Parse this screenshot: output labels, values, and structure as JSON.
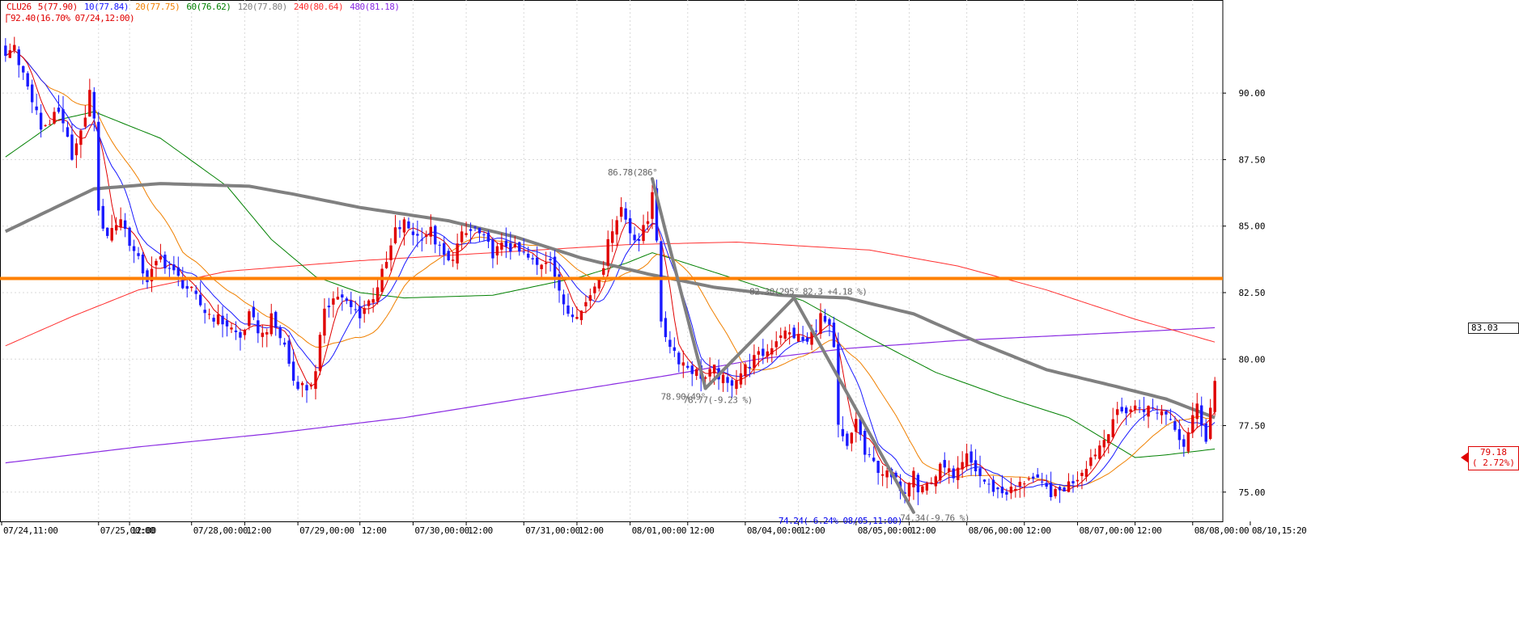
{
  "legend": {
    "symbol": "CLU26",
    "ma5": "5(77.90)",
    "ma10": "10(77.84)",
    "ma20": "20(77.75)",
    "ma60": "60(76.62)",
    "ma120": "120(77.80)",
    "ma240": "240(80.64)",
    "ma480": "480(81.18)",
    "high_label": "92.40(16.70% 07/24,12:00)"
  },
  "colors": {
    "up": "#e00000",
    "down": "#1a1aff",
    "ma5": "#e00000",
    "ma10": "#1a1aff",
    "ma20": "#f08000",
    "ma60": "#008000",
    "ma120": "#808080",
    "ma240": "#ff3030",
    "ma480": "#8a2be2",
    "hline": "#ff8000",
    "trend": "#808080"
  },
  "price_tags": {
    "hline": "83.03",
    "last_price": "79.18",
    "last_change": "( 2.72%)"
  },
  "annotations": [
    {
      "text": "86.78(286°",
      "price": 86.78,
      "idx": 146
    },
    {
      "text": "78.90(49°",
      "price": 78.9,
      "idx": 158
    },
    {
      "text": "78.77(-9.23 %)",
      "price": 78.77,
      "idx": 163
    },
    {
      "text": "82.30(295°",
      "price": 82.3,
      "idx": 178
    },
    {
      "text": "82.3 +4.18 %)",
      "price": 82.3,
      "idx": 190
    },
    {
      "text": "74.24(-6.24% 08/05,11:00)",
      "price": 74.24,
      "idx": 205
    },
    {
      "text": "74.34(-9.76 %)",
      "price": 74.34,
      "idx": 212
    }
  ],
  "chart_data": {
    "type": "candlestick",
    "title": "",
    "symbol": "CLU26",
    "ylim": [
      73.9,
      93.5
    ],
    "y_ticks": [
      "90.00",
      "87.50",
      "85.00",
      "82.50",
      "80.00",
      "77.50",
      "75.00"
    ],
    "x_labels": [
      "07/24,11:00",
      "07/25,00:00",
      "12:00",
      "07/28,00:00",
      "12:00",
      "07/29,00:00",
      "12:00",
      "07/30,00:00",
      "12:00",
      "07/31,00:00",
      "12:00",
      "08/01,00:00",
      "12:00",
      "08/04,00:00",
      "12:00",
      "08/05,00:00",
      "12:00",
      "08/06,00:00",
      "12:00",
      "08/07,00:00",
      "12:00",
      "08/08,00:00",
      "08/10,15:20"
    ],
    "x_label_idx": [
      0,
      21,
      28,
      42,
      54,
      66,
      80,
      92,
      104,
      117,
      129,
      141,
      154,
      167,
      179,
      192,
      204,
      217,
      230,
      242,
      255,
      268,
      281
    ],
    "horizontal_line": 83.03,
    "series_keypoints": [
      [
        0,
        91.4
      ],
      [
        2,
        91.8
      ],
      [
        5,
        90.2
      ],
      [
        8,
        88.7
      ],
      [
        12,
        89.2
      ],
      [
        15,
        87.7
      ],
      [
        17,
        88.4
      ],
      [
        19,
        90.0
      ],
      [
        20,
        89.2
      ],
      [
        21,
        85.4
      ],
      [
        23,
        84.7
      ],
      [
        26,
        85.3
      ],
      [
        29,
        84.0
      ],
      [
        32,
        83.0
      ],
      [
        35,
        83.8
      ],
      [
        38,
        83.2
      ],
      [
        42,
        82.5
      ],
      [
        45,
        81.8
      ],
      [
        50,
        81.3
      ],
      [
        53,
        80.8
      ],
      [
        55,
        81.6
      ],
      [
        58,
        80.9
      ],
      [
        60,
        81.5
      ],
      [
        63,
        80.5
      ],
      [
        65,
        79.2
      ],
      [
        68,
        78.9
      ],
      [
        70,
        79.4
      ],
      [
        72,
        82.0
      ],
      [
        75,
        82.4
      ],
      [
        78,
        81.9
      ],
      [
        80,
        81.7
      ],
      [
        83,
        82.4
      ],
      [
        86,
        83.6
      ],
      [
        88,
        84.8
      ],
      [
        90,
        85.1
      ],
      [
        93,
        84.6
      ],
      [
        96,
        84.8
      ],
      [
        98,
        84.1
      ],
      [
        100,
        83.6
      ],
      [
        103,
        84.6
      ],
      [
        106,
        84.9
      ],
      [
        110,
        84.0
      ],
      [
        113,
        84.3
      ],
      [
        117,
        83.9
      ],
      [
        120,
        83.5
      ],
      [
        123,
        83.9
      ],
      [
        125,
        82.4
      ],
      [
        127,
        81.8
      ],
      [
        130,
        81.8
      ],
      [
        133,
        82.8
      ],
      [
        135,
        83.6
      ],
      [
        137,
        85.0
      ],
      [
        139,
        85.7
      ],
      [
        141,
        84.8
      ],
      [
        143,
        84.5
      ],
      [
        145,
        85.2
      ],
      [
        146,
        86.4
      ],
      [
        147,
        84.6
      ],
      [
        148,
        81.2
      ],
      [
        150,
        80.6
      ],
      [
        152,
        80.0
      ],
      [
        155,
        79.6
      ],
      [
        158,
        79.3
      ],
      [
        160,
        79.6
      ],
      [
        163,
        79.0
      ],
      [
        166,
        79.5
      ],
      [
        169,
        80.0
      ],
      [
        172,
        80.3
      ],
      [
        175,
        81.0
      ],
      [
        178,
        80.9
      ],
      [
        181,
        80.6
      ],
      [
        184,
        81.6
      ],
      [
        186,
        81.1
      ],
      [
        187,
        80.3
      ],
      [
        188,
        77.4
      ],
      [
        190,
        76.6
      ],
      [
        192,
        77.8
      ],
      [
        194,
        76.4
      ],
      [
        197,
        75.9
      ],
      [
        200,
        75.5
      ],
      [
        203,
        75.1
      ],
      [
        205,
        76.0
      ],
      [
        206,
        75.1
      ],
      [
        209,
        75.4
      ],
      [
        212,
        76.1
      ],
      [
        214,
        75.4
      ],
      [
        217,
        76.3
      ],
      [
        220,
        75.6
      ],
      [
        222,
        75.2
      ],
      [
        225,
        75.0
      ],
      [
        228,
        75.1
      ],
      [
        231,
        75.6
      ],
      [
        234,
        75.2
      ],
      [
        237,
        74.9
      ],
      [
        240,
        75.3
      ],
      [
        242,
        75.6
      ],
      [
        245,
        76.3
      ],
      [
        248,
        77.0
      ],
      [
        250,
        77.8
      ],
      [
        253,
        78.1
      ],
      [
        256,
        78.2
      ],
      [
        259,
        78.1
      ],
      [
        262,
        78.0
      ],
      [
        264,
        77.5
      ],
      [
        266,
        76.8
      ],
      [
        268,
        77.9
      ],
      [
        269,
        78.2
      ],
      [
        271,
        77.1
      ],
      [
        273,
        79.18
      ]
    ],
    "moving_averages": {
      "ma60": [
        [
          0,
          87.6
        ],
        [
          12,
          89.0
        ],
        [
          20,
          89.3
        ],
        [
          35,
          88.3
        ],
        [
          50,
          86.5
        ],
        [
          60,
          84.5
        ],
        [
          70,
          83.1
        ],
        [
          80,
          82.5
        ],
        [
          90,
          82.3
        ],
        [
          110,
          82.4
        ],
        [
          130,
          83.1
        ],
        [
          140,
          83.6
        ],
        [
          146,
          84.0
        ],
        [
          150,
          83.8
        ],
        [
          165,
          83.0
        ],
        [
          180,
          82.2
        ],
        [
          195,
          80.8
        ],
        [
          210,
          79.5
        ],
        [
          225,
          78.6
        ],
        [
          240,
          77.8
        ],
        [
          250,
          76.8
        ],
        [
          255,
          76.3
        ],
        [
          262,
          76.4
        ],
        [
          273,
          76.62
        ]
      ],
      "ma120": [
        [
          0,
          84.8
        ],
        [
          10,
          85.6
        ],
        [
          20,
          86.4
        ],
        [
          35,
          86.6
        ],
        [
          55,
          86.5
        ],
        [
          65,
          86.2
        ],
        [
          80,
          85.7
        ],
        [
          100,
          85.2
        ],
        [
          115,
          84.6
        ],
        [
          130,
          83.8
        ],
        [
          145,
          83.2
        ],
        [
          160,
          82.7
        ],
        [
          175,
          82.4
        ],
        [
          190,
          82.3
        ],
        [
          205,
          81.7
        ],
        [
          220,
          80.6
        ],
        [
          235,
          79.6
        ],
        [
          250,
          79.0
        ],
        [
          262,
          78.5
        ],
        [
          273,
          77.8
        ]
      ],
      "ma240": [
        [
          0,
          80.5
        ],
        [
          15,
          81.6
        ],
        [
          30,
          82.6
        ],
        [
          50,
          83.3
        ],
        [
          80,
          83.7
        ],
        [
          110,
          84.0
        ],
        [
          140,
          84.3
        ],
        [
          165,
          84.4
        ],
        [
          195,
          84.1
        ],
        [
          215,
          83.5
        ],
        [
          235,
          82.6
        ],
        [
          255,
          81.5
        ],
        [
          273,
          80.64
        ]
      ],
      "ma480": [
        [
          0,
          76.1
        ],
        [
          30,
          76.7
        ],
        [
          60,
          77.2
        ],
        [
          90,
          77.8
        ],
        [
          120,
          78.6
        ],
        [
          150,
          79.4
        ],
        [
          170,
          80.0
        ],
        [
          190,
          80.4
        ],
        [
          215,
          80.7
        ],
        [
          240,
          80.9
        ],
        [
          273,
          81.18
        ]
      ]
    },
    "trend_lines": [
      [
        [
          146,
          86.78
        ],
        [
          158,
          78.9
        ]
      ],
      [
        [
          158,
          78.9
        ],
        [
          178,
          82.3
        ]
      ],
      [
        [
          178,
          82.3
        ],
        [
          205,
          74.24
        ]
      ]
    ]
  }
}
